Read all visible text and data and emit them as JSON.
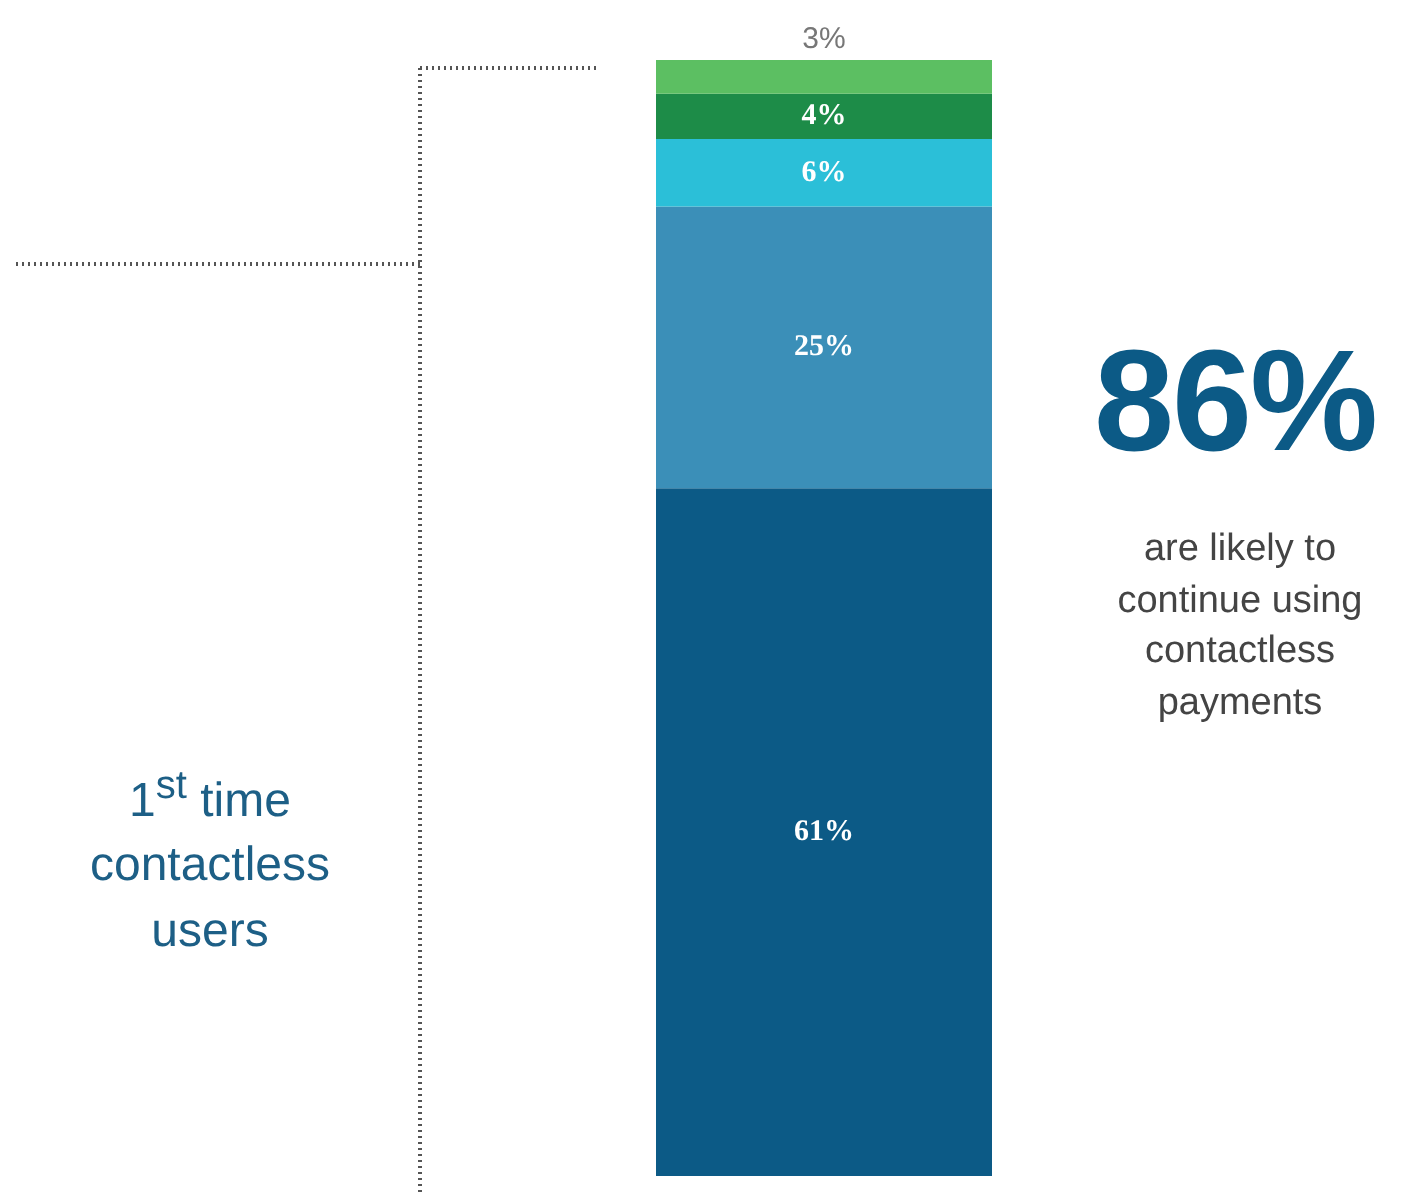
{
  "chart_data": {
    "type": "bar",
    "stacked": true,
    "categories": [
      null
    ],
    "series": [
      {
        "color": "#0c5a86",
        "values": [
          61
        ],
        "value_labels": [
          "61%"
        ]
      },
      {
        "color": "#3b8fb8",
        "values": [
          25
        ],
        "value_labels": [
          "25%"
        ]
      },
      {
        "color": "#2bbfd8",
        "values": [
          6
        ],
        "value_labels": [
          "6%"
        ]
      },
      {
        "color": "#1d8c48",
        "values": [
          4
        ],
        "value_labels": [
          "4%"
        ]
      },
      {
        "color": "#5cbf62",
        "values": [
          3
        ],
        "value_labels": [
          "3%"
        ]
      }
    ],
    "annotations": [
      "1$^{st}$ time contactless users",
      "86%",
      "are likely to continue using contactless payments"
    ]
  }
}
